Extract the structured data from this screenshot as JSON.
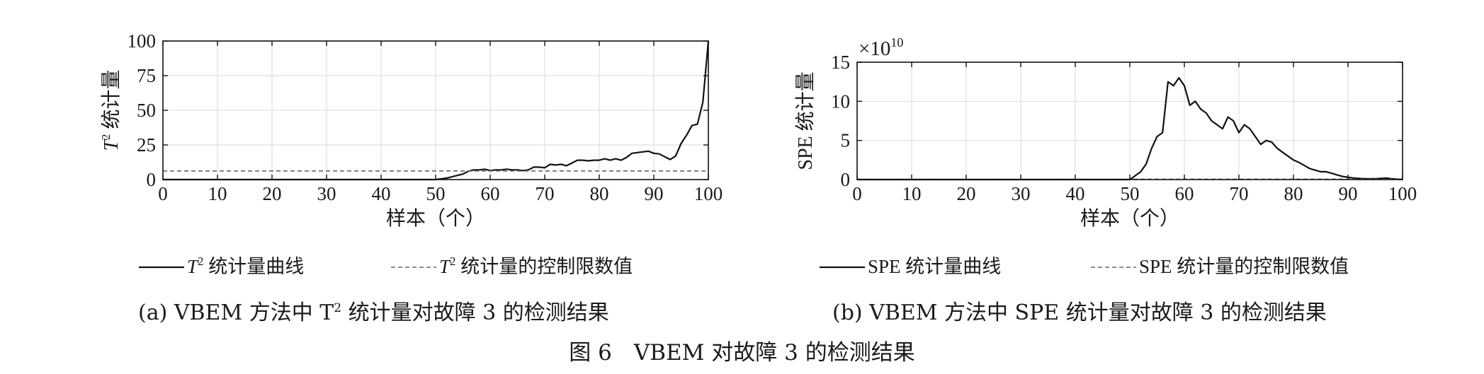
{
  "figure_title": "图 6　VBEM 对故障 3 的检测结果",
  "chart_data": [
    {
      "type": "line",
      "caption_prefix": "(a) VBEM 方法中 T",
      "caption_sup": "2",
      "caption_suffix": " 统计量对故障 3 的检测结果",
      "ylabel_main": "T",
      "ylabel_sup": "2",
      "ylabel_suffix": " 统计量",
      "xlabel": "样本（个）",
      "xlim": [
        0,
        100
      ],
      "ylim": [
        0,
        100
      ],
      "xticks": [
        0,
        10,
        20,
        30,
        40,
        50,
        60,
        70,
        80,
        90,
        100
      ],
      "yticks": [
        0,
        25,
        50,
        75,
        100
      ],
      "ytick_labels": [
        "0",
        "25",
        "50",
        "75",
        "100"
      ],
      "scale_exponent_label": "",
      "grid": true,
      "legend_position": "bottom",
      "series": [
        {
          "name": "T² 统计量曲线",
          "legend_main": "T",
          "legend_sup": "2",
          "legend_suffix": " 统计量曲线",
          "style": "solid",
          "x": [
            0,
            10,
            20,
            30,
            40,
            48,
            50,
            51,
            52,
            53,
            54,
            55,
            56,
            57,
            58,
            59,
            60,
            61,
            62,
            63,
            64,
            65,
            66,
            67,
            68,
            69,
            70,
            71,
            72,
            73,
            74,
            75,
            76,
            77,
            78,
            79,
            80,
            81,
            82,
            83,
            84,
            85,
            86,
            87,
            88,
            89,
            90,
            91,
            92,
            93,
            94,
            95,
            96,
            97,
            98,
            99,
            100
          ],
          "y": [
            0,
            0,
            0,
            0,
            0,
            0,
            0,
            0.5,
            1,
            2,
            3,
            4,
            6,
            7,
            7,
            7.5,
            6.5,
            7,
            7,
            7.5,
            7,
            7,
            6.5,
            7,
            9,
            9,
            8.5,
            11,
            10.5,
            11,
            10,
            12,
            14,
            14,
            13.5,
            14,
            14,
            15,
            14,
            15,
            14,
            16,
            19,
            19.5,
            20,
            20.5,
            19,
            18.5,
            16.5,
            14.5,
            17,
            26,
            32,
            39,
            40,
            56,
            100
          ]
        },
        {
          "name": "T² 统计量的控制限数值",
          "legend_main": "T",
          "legend_sup": "2",
          "legend_suffix": " 统计量的控制限数值",
          "style": "dashed",
          "x": [
            0,
            100
          ],
          "y": [
            6.2,
            6.2
          ]
        }
      ]
    },
    {
      "type": "line",
      "caption_prefix": "(b) VBEM 方法中 SPE 统计量对故障 3 的检测结果",
      "caption_sup": "",
      "caption_suffix": "",
      "ylabel_main": "SPE 统计量",
      "ylabel_sup": "",
      "ylabel_suffix": "",
      "xlabel": "样本（个）",
      "xlim": [
        0,
        100
      ],
      "ylim": [
        0,
        15
      ],
      "xticks": [
        0,
        10,
        20,
        30,
        40,
        50,
        60,
        70,
        80,
        90,
        100
      ],
      "yticks": [
        0,
        5,
        10,
        15
      ],
      "ytick_labels": [
        "0",
        "5",
        "10",
        "15"
      ],
      "scale_exponent_label": "×10",
      "scale_exponent_sup": "10",
      "grid": true,
      "legend_position": "bottom",
      "series": [
        {
          "name": "SPE 统计量曲线",
          "legend_main": "SPE 统计量曲线",
          "legend_sup": "",
          "legend_suffix": "",
          "style": "solid",
          "x": [
            0,
            10,
            20,
            30,
            40,
            50,
            51,
            52,
            53,
            54,
            55,
            56,
            57,
            58,
            59,
            60,
            61,
            62,
            63,
            64,
            65,
            66,
            67,
            68,
            69,
            70,
            71,
            72,
            73,
            74,
            75,
            76,
            77,
            78,
            79,
            80,
            81,
            82,
            83,
            84,
            85,
            86,
            87,
            88,
            89,
            90,
            91,
            92,
            93,
            94,
            95,
            96,
            97,
            98,
            99,
            100
          ],
          "y": [
            0,
            0,
            0,
            0,
            0,
            0,
            0.5,
            1,
            2,
            4,
            5.5,
            6,
            12.5,
            12,
            13,
            12,
            9.5,
            10,
            9,
            8.5,
            7.5,
            7,
            6.5,
            8,
            7.5,
            6,
            7,
            6.5,
            5.5,
            4.5,
            5,
            4.8,
            4,
            3.5,
            3,
            2.5,
            2.2,
            1.8,
            1.4,
            1.2,
            1,
            1,
            0.8,
            0.6,
            0.4,
            0.3,
            0.2,
            0.15,
            0.1,
            0.1,
            0.1,
            0.15,
            0.2,
            0.1,
            0.05,
            0
          ]
        },
        {
          "name": "SPE 统计量的控制限数值",
          "legend_main": "SPE 统计量的控制限数值",
          "legend_sup": "",
          "legend_suffix": "",
          "style": "dashed",
          "x": [
            0,
            100
          ],
          "y": [
            0.05,
            0.05
          ]
        }
      ]
    }
  ]
}
